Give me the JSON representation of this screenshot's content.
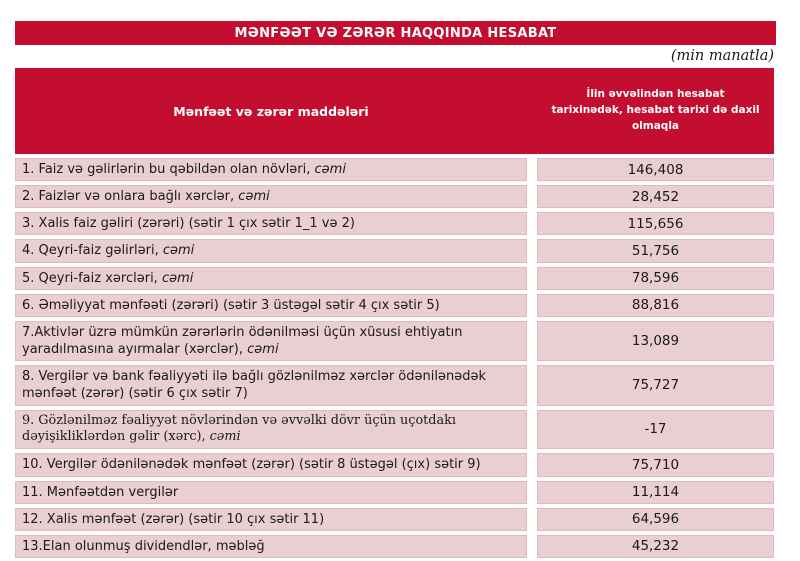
{
  "title": "MƏNFƏƏT VƏ ZƏRƏR HAQQINDA HESABAT",
  "unit_note": "(min manatla)",
  "colors": {
    "accent_red": "#C30E2F",
    "row_pink": "#E9CED2",
    "header_text": "#FFFFFF"
  },
  "table": {
    "col1_header": "Mənfəət və zərər maddələri",
    "col2_header": "İlin əvvəlindən hesabat tarixinədək, hesabat tarixi də daxil olmaqla",
    "rows": [
      {
        "label": "1. Faiz və gəlirlərin bu qəbildən olan növləri, ",
        "label_suffix_italic": "cəmi",
        "value": "146,408",
        "serif": false
      },
      {
        "label": "2. Faizlər və onlara bağlı xərclər, ",
        "label_suffix_italic": "cəmi",
        "value": "28,452",
        "serif": false
      },
      {
        "label": "3. Xalis faiz gəliri (zərəri) (sətir 1 çıx sətir 1_1 və 2)",
        "label_suffix_italic": "",
        "value": "115,656",
        "serif": false
      },
      {
        "label": "4. Qeyri-faiz gəlirləri, ",
        "label_suffix_italic": "cəmi",
        "value": "51,756",
        "serif": false
      },
      {
        "label": "5. Qeyri-faiz xərcləri, ",
        "label_suffix_italic": "cəmi",
        "value": "78,596",
        "serif": false
      },
      {
        "label": "6. Əməliyyat mənfəəti (zərəri) (sətir 3 üstəgəl sətir 4 çıx sətir 5)",
        "label_suffix_italic": "",
        "value": "88,816",
        "serif": false
      },
      {
        "label": "7.Aktivlər üzrə mümkün zərərlərin ödənilməsi üçün xüsusi ehtiyatın yaradılmasına ayırmalar (xərclər), ",
        "label_suffix_italic": "cəmi",
        "value": "13,089",
        "serif": false
      },
      {
        "label": "8. Vergilər və bank fəaliyyəti ilə bağlı gözlənilməz xərclər ödənilənədək mənfəət (zərər) (sətir 6 çıx sətir 7)",
        "label_suffix_italic": "",
        "value": "75,727",
        "serif": false
      },
      {
        "label": "9. Gözlənilməz fəaliyyət növlərindən və əvvəlki dövr üçün uçotdakı dəyişikliklərdən gəlir (xərc), ",
        "label_suffix_italic": "cəmi",
        "value": "-17",
        "serif": true
      },
      {
        "label": "10. Vergilər ödənilənədək mənfəət (zərər) (sətir 8 üstəgəl (çıx) sətir 9)",
        "label_suffix_italic": "",
        "value": "75,710",
        "serif": false
      },
      {
        "label": "11. Mənfəətdən vergilər",
        "label_suffix_italic": "",
        "value": "11,114",
        "serif": false
      },
      {
        "label": "12. Xalis mənfəət (zərər) (sətir 10 çıx sətir 11)",
        "label_suffix_italic": "",
        "value": "64,596",
        "serif": false
      },
      {
        "label": "13.Elan olunmuş dividendlər, məbləğ",
        "label_suffix_italic": "",
        "value": "45,232",
        "serif": false
      }
    ]
  }
}
